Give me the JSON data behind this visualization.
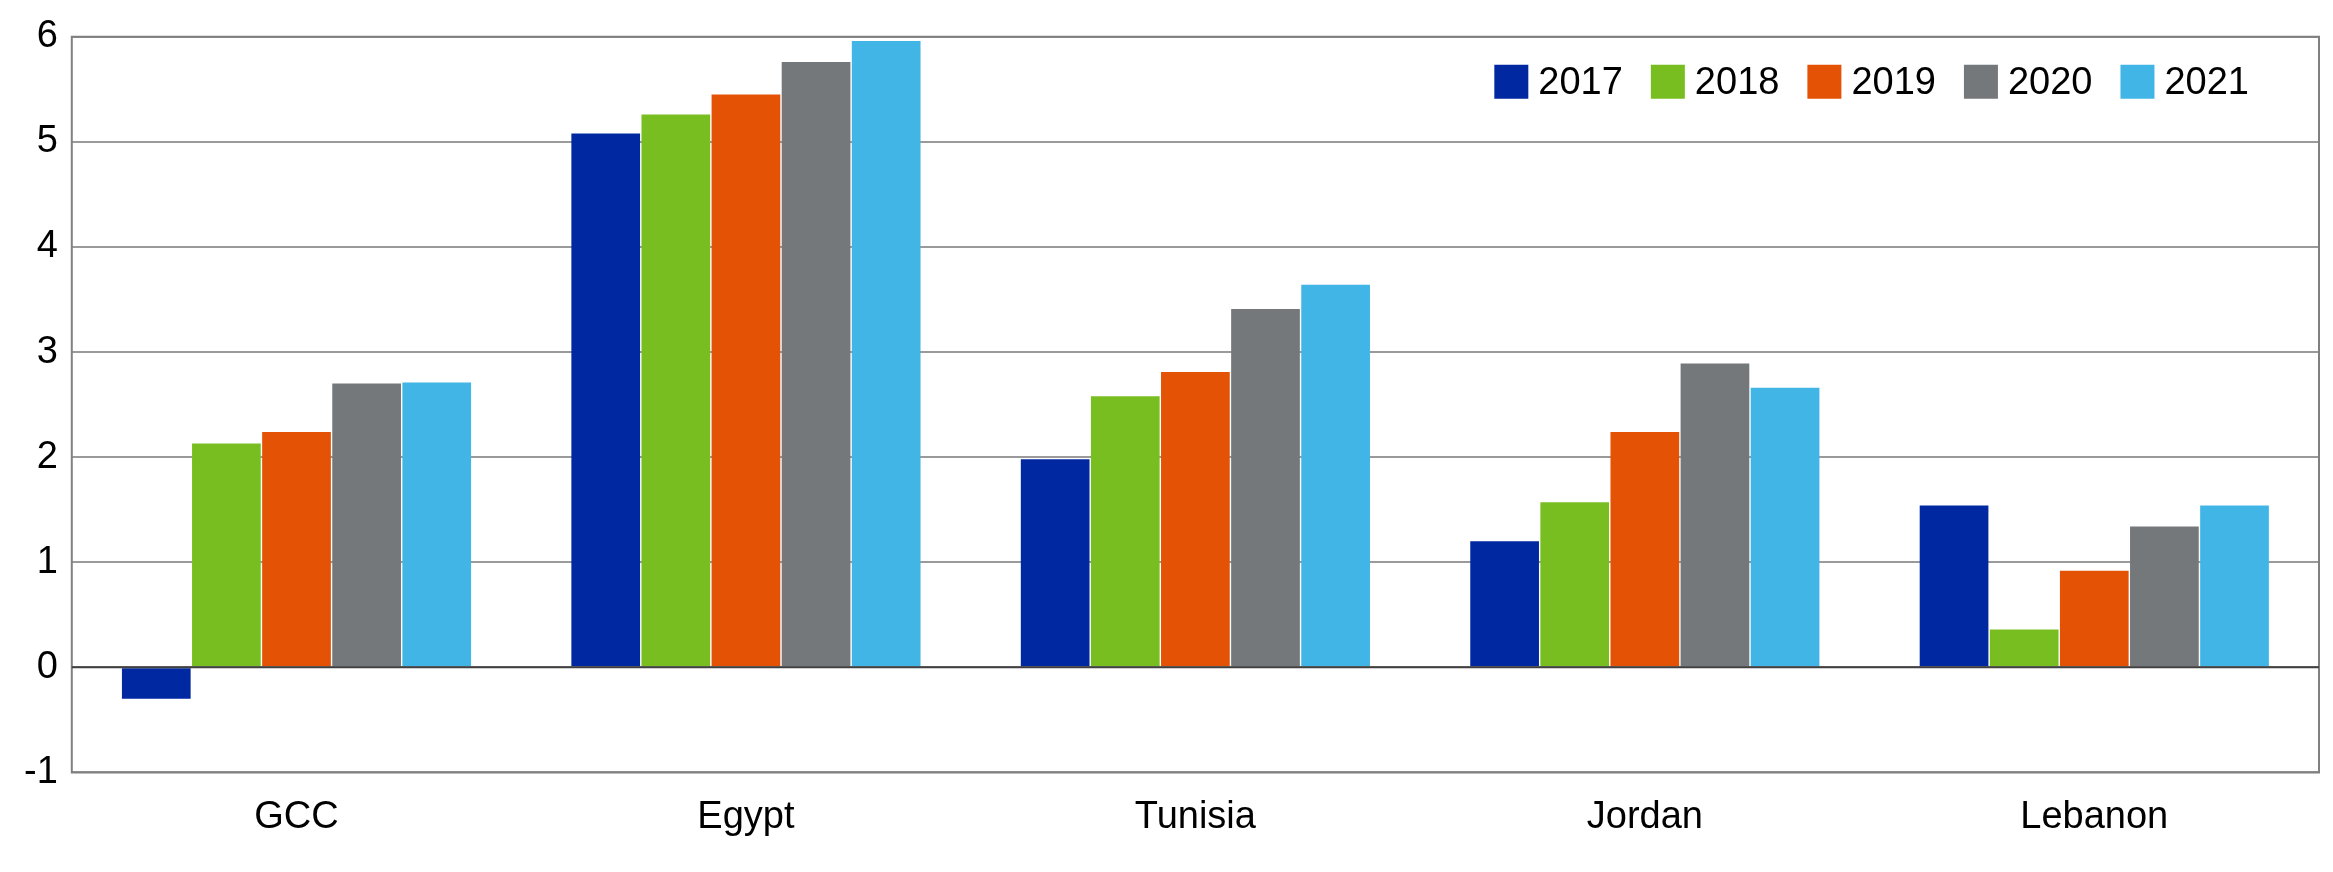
{
  "chart_data": {
    "type": "bar",
    "categories": [
      "GCC",
      "Egypt",
      "Tunisia",
      "Jordan",
      "Lebanon"
    ],
    "series": [
      {
        "name": "2017",
        "color": "#0028a0",
        "values": [
          -0.3,
          5.08,
          1.98,
          1.2,
          1.54
        ]
      },
      {
        "name": "2018",
        "color": "#78be20",
        "values": [
          2.13,
          5.26,
          2.58,
          1.57,
          0.36
        ]
      },
      {
        "name": "2019",
        "color": "#e35205",
        "values": [
          2.24,
          5.45,
          2.81,
          2.24,
          0.92
        ]
      },
      {
        "name": "2020",
        "color": "#75787b",
        "values": [
          2.7,
          5.76,
          3.41,
          2.89,
          1.34
        ]
      },
      {
        "name": "2021",
        "color": "#41b6e6",
        "values": [
          2.71,
          5.96,
          3.64,
          2.66,
          1.54
        ]
      }
    ],
    "ylim": [
      -1,
      6
    ],
    "yticks": [
      -1,
      0,
      1,
      2,
      3,
      4,
      5,
      6
    ],
    "grid": "y",
    "legend": "top right"
  }
}
